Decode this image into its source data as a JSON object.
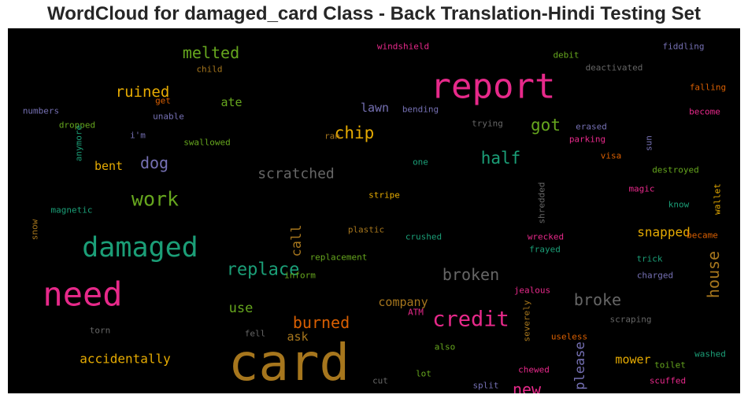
{
  "chart_data": {
    "type": "wordcloud",
    "title": "WordCloud for damaged_card Class - Back Translation-Hindi Testing Set",
    "background": "#000000",
    "colormap": "Dark2",
    "words": [
      {
        "text": "card",
        "weight": 1.0,
        "color": "#a6761d"
      },
      {
        "text": "report",
        "weight": 0.72,
        "color": "#e7298a"
      },
      {
        "text": "need",
        "weight": 0.7,
        "color": "#e7298a"
      },
      {
        "text": "damaged",
        "weight": 0.58,
        "color": "#1b9e77"
      },
      {
        "text": "credit",
        "weight": 0.46,
        "color": "#e7298a"
      },
      {
        "text": "work",
        "weight": 0.42,
        "color": "#66a61e"
      },
      {
        "text": "replace",
        "weight": 0.4,
        "color": "#1b9e77"
      },
      {
        "text": "half",
        "weight": 0.37,
        "color": "#1b9e77"
      },
      {
        "text": "house",
        "weight": 0.36,
        "color": "#a6761d"
      },
      {
        "text": "got",
        "weight": 0.36,
        "color": "#66a61e"
      },
      {
        "text": "chip",
        "weight": 0.36,
        "color": "#e6ab02"
      },
      {
        "text": "melted",
        "weight": 0.36,
        "color": "#66a61e"
      },
      {
        "text": "broken",
        "weight": 0.36,
        "color": "#666666"
      },
      {
        "text": "broke",
        "weight": 0.36,
        "color": "#666666"
      },
      {
        "text": "burned",
        "weight": 0.36,
        "color": "#d95f02"
      },
      {
        "text": "new",
        "weight": 0.36,
        "color": "#e7298a"
      },
      {
        "text": "dog",
        "weight": 0.36,
        "color": "#7570b3"
      },
      {
        "text": "ruined",
        "weight": 0.33,
        "color": "#e6ab02"
      },
      {
        "text": "scratched",
        "weight": 0.33,
        "color": "#666666"
      },
      {
        "text": "please",
        "weight": 0.3,
        "color": "#7570b3"
      },
      {
        "text": "use",
        "weight": 0.3,
        "color": "#66a61e"
      },
      {
        "text": "call",
        "weight": 0.3,
        "color": "#a6761d"
      },
      {
        "text": "snapped",
        "weight": 0.28,
        "color": "#e6ab02"
      },
      {
        "text": "accidentally",
        "weight": 0.28,
        "color": "#e6ab02"
      },
      {
        "text": "company",
        "weight": 0.28,
        "color": "#a6761d"
      },
      {
        "text": "mower",
        "weight": 0.28,
        "color": "#e6ab02"
      },
      {
        "text": "lawn",
        "weight": 0.28,
        "color": "#7570b3"
      },
      {
        "text": "ask",
        "weight": 0.28,
        "color": "#a6761d"
      },
      {
        "text": "ate",
        "weight": 0.28,
        "color": "#66a61e"
      },
      {
        "text": "bent",
        "weight": 0.28,
        "color": "#e6ab02"
      },
      {
        "text": "windshield",
        "weight": 0.2,
        "color": "#e7298a"
      },
      {
        "text": "debit",
        "weight": 0.2,
        "color": "#66a61e"
      },
      {
        "text": "fiddling",
        "weight": 0.2,
        "color": "#7570b3"
      },
      {
        "text": "child",
        "weight": 0.2,
        "color": "#a6761d"
      },
      {
        "text": "deactivated",
        "weight": 0.2,
        "color": "#666666"
      },
      {
        "text": "falling",
        "weight": 0.2,
        "color": "#d95f02"
      },
      {
        "text": "get",
        "weight": 0.2,
        "color": "#d95f02"
      },
      {
        "text": "numbers",
        "weight": 0.2,
        "color": "#7570b3"
      },
      {
        "text": "unable",
        "weight": 0.2,
        "color": "#7570b3"
      },
      {
        "text": "bending",
        "weight": 0.2,
        "color": "#7570b3"
      },
      {
        "text": "become",
        "weight": 0.2,
        "color": "#e7298a"
      },
      {
        "text": "dropped",
        "weight": 0.2,
        "color": "#66a61e"
      },
      {
        "text": "trying",
        "weight": 0.2,
        "color": "#666666"
      },
      {
        "text": "erased",
        "weight": 0.2,
        "color": "#7570b3"
      },
      {
        "text": "i'm",
        "weight": 0.2,
        "color": "#7570b3"
      },
      {
        "text": "ran",
        "weight": 0.2,
        "color": "#a6761d"
      },
      {
        "text": "parking",
        "weight": 0.2,
        "color": "#e7298a"
      },
      {
        "text": "swallowed",
        "weight": 0.2,
        "color": "#66a61e"
      },
      {
        "text": "anymore",
        "weight": 0.2,
        "color": "#1b9e77"
      },
      {
        "text": "sun",
        "weight": 0.2,
        "color": "#7570b3"
      },
      {
        "text": "visa",
        "weight": 0.2,
        "color": "#d95f02"
      },
      {
        "text": "one",
        "weight": 0.2,
        "color": "#1b9e77"
      },
      {
        "text": "destroyed",
        "weight": 0.2,
        "color": "#66a61e"
      },
      {
        "text": "wallet",
        "weight": 0.2,
        "color": "#e6ab02"
      },
      {
        "text": "stripe",
        "weight": 0.2,
        "color": "#e6ab02"
      },
      {
        "text": "magic",
        "weight": 0.2,
        "color": "#e7298a"
      },
      {
        "text": "shredded",
        "weight": 0.2,
        "color": "#666666"
      },
      {
        "text": "magnetic",
        "weight": 0.2,
        "color": "#1b9e77"
      },
      {
        "text": "know",
        "weight": 0.2,
        "color": "#1b9e77"
      },
      {
        "text": "snow",
        "weight": 0.2,
        "color": "#a6761d"
      },
      {
        "text": "plastic",
        "weight": 0.2,
        "color": "#a6761d"
      },
      {
        "text": "crushed",
        "weight": 0.2,
        "color": "#1b9e77"
      },
      {
        "text": "wrecked",
        "weight": 0.2,
        "color": "#e7298a"
      },
      {
        "text": "became",
        "weight": 0.2,
        "color": "#d95f02"
      },
      {
        "text": "replacement",
        "weight": 0.2,
        "color": "#66a61e"
      },
      {
        "text": "frayed",
        "weight": 0.2,
        "color": "#1b9e77"
      },
      {
        "text": "trick",
        "weight": 0.2,
        "color": "#1b9e77"
      },
      {
        "text": "inform",
        "weight": 0.2,
        "color": "#66a61e"
      },
      {
        "text": "charged",
        "weight": 0.2,
        "color": "#7570b3"
      },
      {
        "text": "jealous",
        "weight": 0.2,
        "color": "#e7298a"
      },
      {
        "text": "ATM",
        "weight": 0.2,
        "color": "#e7298a"
      },
      {
        "text": "severely",
        "weight": 0.2,
        "color": "#a6761d"
      },
      {
        "text": "torn",
        "weight": 0.2,
        "color": "#666666"
      },
      {
        "text": "fell",
        "weight": 0.2,
        "color": "#666666"
      },
      {
        "text": "scraping",
        "weight": 0.2,
        "color": "#666666"
      },
      {
        "text": "useless",
        "weight": 0.2,
        "color": "#d95f02"
      },
      {
        "text": "washed",
        "weight": 0.2,
        "color": "#1b9e77"
      },
      {
        "text": "also",
        "weight": 0.2,
        "color": "#66a61e"
      },
      {
        "text": "toilet",
        "weight": 0.2,
        "color": "#66a61e"
      },
      {
        "text": "lot",
        "weight": 0.2,
        "color": "#66a61e"
      },
      {
        "text": "chewed",
        "weight": 0.2,
        "color": "#e7298a"
      },
      {
        "text": "cut",
        "weight": 0.2,
        "color": "#666666"
      },
      {
        "text": "split",
        "weight": 0.2,
        "color": "#7570b3"
      },
      {
        "text": "scuffed",
        "weight": 0.2,
        "color": "#e7298a"
      }
    ]
  }
}
